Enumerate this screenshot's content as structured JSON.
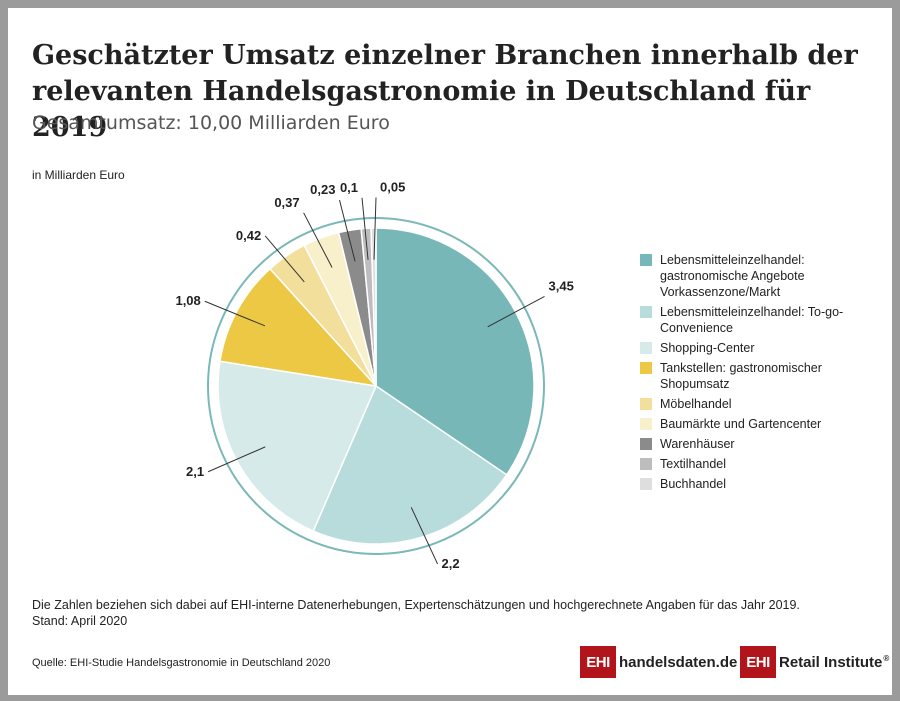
{
  "title": "Geschätzter Umsatz einzelner Branchen innerhalb der relevanten Handelsgastronomie in Deutschland für 2019",
  "subtitle": "Gesamtumsatz: 10,00 Milliarden Euro",
  "unit_label": "in Milliarden Euro",
  "note_line1": "Die Zahlen beziehen sich dabei auf EHI-interne Datenerhebungen, Expertenschätzungen und hochgerechnete Angaben für das Jahr 2019.",
  "note_line2": "Stand: April 2020",
  "source": "Quelle: EHI-Studie Handelsgastronomie in Deutschland 2020",
  "logos": {
    "handelsdaten_box": "EHI",
    "handelsdaten_text": "handelsdaten.de",
    "retail_box": "EHI",
    "retail_text": "Retail Institute",
    "retail_reg": "®"
  },
  "colors": {
    "ring": "#7bb8b8",
    "leader": "#333333"
  },
  "chart_data": {
    "type": "pie",
    "unit": "Milliarden Euro",
    "total": 10.0,
    "slices": [
      {
        "name": "Lebensmitteleinzelhandel: gastronomische Angebote Vorkassenzone/Markt",
        "value": 3.45,
        "label": "3,45",
        "color": "#78b7b7"
      },
      {
        "name": "Lebensmitteleinzelhandel: To-go-Convenience",
        "value": 2.2,
        "label": "2,2",
        "color": "#b8dcdc"
      },
      {
        "name": "Shopping-Center",
        "value": 2.1,
        "label": "2,1",
        "color": "#d6eaea"
      },
      {
        "name": "Tankstellen: gastronomischer Shopumsatz",
        "value": 1.08,
        "label": "1,08",
        "color": "#ecc845"
      },
      {
        "name": "Möbelhandel",
        "value": 0.42,
        "label": "0,42",
        "color": "#f3df9c"
      },
      {
        "name": "Baumärkte und Gartencenter",
        "value": 0.37,
        "label": "0,37",
        "color": "#f8efcb"
      },
      {
        "name": "Warenhäuser",
        "value": 0.23,
        "label": "0,23",
        "color": "#8b8b8b"
      },
      {
        "name": "Textilhandel",
        "value": 0.1,
        "label": "0,1",
        "color": "#bdbdbd"
      },
      {
        "name": "Buchhandel",
        "value": 0.05,
        "label": "0,05",
        "color": "#dedede"
      }
    ],
    "legend_position": "right"
  }
}
